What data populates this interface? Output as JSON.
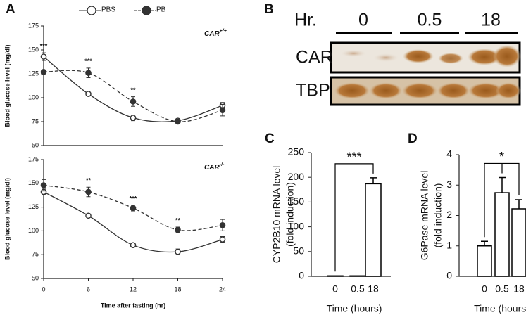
{
  "chart_data": [
    {
      "type": "line",
      "panel": "A",
      "legend": "top",
      "ylabel": "Blood glucose level  (mg/dl)",
      "x": [
        0,
        6,
        12,
        18,
        24
      ],
      "xlim": [
        0,
        24
      ],
      "ylim": [
        50,
        175
      ],
      "yticks": [
        50,
        75,
        100,
        125,
        150,
        175
      ],
      "label": {
        "text": "CAR",
        "sup": "+/+"
      },
      "series": [
        {
          "name": "PBS",
          "color": "#333333",
          "marker": "open",
          "dashed": false,
          "values": [
            143,
            104,
            79,
            76,
            92
          ],
          "errors": [
            4,
            2,
            3,
            2,
            3
          ]
        },
        {
          "name": "PB",
          "color": "#333333",
          "marker": "filled",
          "dashed": true,
          "values": [
            127,
            126,
            96,
            75,
            87
          ],
          "errors": [
            2,
            5,
            5,
            2,
            6
          ]
        }
      ],
      "annotations": [
        {
          "x": 0,
          "text": "***"
        },
        {
          "x": 6,
          "text": "***"
        },
        {
          "x": 12,
          "text": "**"
        }
      ]
    },
    {
      "type": "line",
      "ylabel": "Blood glucose level  (mg/dl)",
      "xlabel": "Time after fasting (hr)",
      "x": [
        0,
        6,
        12,
        18,
        24
      ],
      "xlim": [
        0,
        24
      ],
      "xticks": [
        0,
        6,
        12,
        18,
        24
      ],
      "ylim": [
        50,
        175
      ],
      "yticks": [
        50,
        75,
        100,
        125,
        150,
        175
      ],
      "label": {
        "text": "CAR",
        "sup": "-/-"
      },
      "series": [
        {
          "name": "PBS",
          "color": "#333333",
          "marker": "open",
          "dashed": false,
          "values": [
            141,
            116,
            85,
            78,
            91
          ],
          "errors": [
            3,
            2,
            2,
            3,
            3
          ]
        },
        {
          "name": "PB",
          "color": "#333333",
          "marker": "filled",
          "dashed": true,
          "values": [
            148,
            141,
            124,
            101,
            106
          ],
          "errors": [
            6,
            5,
            3,
            3,
            6
          ]
        }
      ],
      "annotations": [
        {
          "x": 6,
          "text": "**"
        },
        {
          "x": 12,
          "text": "***"
        },
        {
          "x": 18,
          "text": "**"
        }
      ]
    },
    {
      "type": "bar",
      "panel": "C",
      "ylabel": [
        "CYP2B10 mRNA level",
        "(fold induction)"
      ],
      "xlabel": "Time (hours)",
      "categories": [
        "0",
        "0.5",
        "18"
      ],
      "values": [
        1,
        1,
        187
      ],
      "errors": [
        null,
        null,
        12
      ],
      "ylim": [
        0,
        250
      ],
      "yticks": [
        0,
        50,
        100,
        150,
        200,
        250
      ],
      "significance": "***"
    },
    {
      "type": "bar",
      "panel": "D",
      "ylabel": [
        "G6Pase mRNA level",
        "(fold induction)"
      ],
      "xlabel": "Time (hours)",
      "categories": [
        "0",
        "0.5",
        "18"
      ],
      "values": [
        1.0,
        2.75,
        2.22
      ],
      "errors": [
        0.15,
        0.5,
        0.3
      ],
      "ylim": [
        0,
        4
      ],
      "yticks": [
        0,
        1,
        2,
        3,
        4
      ],
      "significance": "*"
    }
  ],
  "blot": {
    "panel": "B",
    "time_label": "Hr.",
    "times": [
      "0",
      "0.5",
      "18"
    ],
    "rows": [
      "CAR",
      "TBP"
    ]
  }
}
